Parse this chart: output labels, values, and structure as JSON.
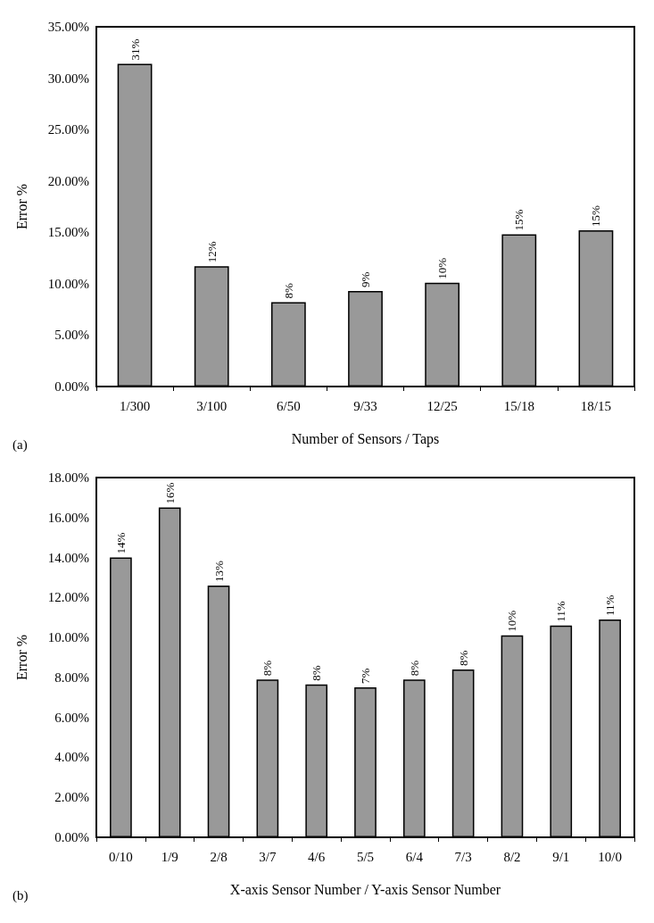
{
  "chart_data": [
    {
      "type": "bar",
      "xlabel": "Number of Sensors / Taps",
      "ylabel": "Error %",
      "annotations": [
        "(a)"
      ],
      "categories": [
        "1/300",
        "3/100",
        "6/50",
        "9/33",
        "12/25",
        "15/18",
        "18/15"
      ],
      "values": [
        31.4,
        11.7,
        8.2,
        9.3,
        10.1,
        14.8,
        15.2
      ],
      "color": "#999999",
      "value_labels": [
        "31%",
        "12%",
        "8%",
        "9%",
        "10%",
        "15%",
        "15%"
      ],
      "ylim": [
        0,
        35
      ],
      "yticks": [
        {
          "value": 0,
          "label": "0.00%"
        },
        {
          "value": 5,
          "label": "5.00%"
        },
        {
          "value": 10,
          "label": "10.00%"
        },
        {
          "value": 15,
          "label": "15.00%"
        },
        {
          "value": 20,
          "label": "20.00%"
        },
        {
          "value": 25,
          "label": "25.00%"
        },
        {
          "value": 30,
          "label": "30.00%"
        },
        {
          "value": 35,
          "label": "35.00%"
        }
      ],
      "grid": false
    },
    {
      "type": "bar",
      "xlabel": "X-axis Sensor Number / Y-axis Sensor Number",
      "ylabel": "Error %",
      "annotations": [
        "(b)"
      ],
      "categories": [
        "0/10",
        "1/9",
        "2/8",
        "3/7",
        "4/6",
        "5/5",
        "6/4",
        "7/3",
        "8/2",
        "9/1",
        "10/0"
      ],
      "values": [
        14.0,
        16.5,
        12.6,
        7.9,
        7.65,
        7.5,
        7.9,
        8.4,
        10.1,
        10.6,
        10.9
      ],
      "color": "#999999",
      "value_labels": [
        "14%",
        "16%",
        "13%",
        "8%",
        "8%",
        "7%",
        "8%",
        "8%",
        "10%",
        "11%",
        "11%"
      ],
      "ylim": [
        0,
        18
      ],
      "yticks": [
        {
          "value": 0,
          "label": "0.00%"
        },
        {
          "value": 2,
          "label": "2.00%"
        },
        {
          "value": 4,
          "label": "4.00%"
        },
        {
          "value": 6,
          "label": "6.00%"
        },
        {
          "value": 8,
          "label": "8.00%"
        },
        {
          "value": 10,
          "label": "10.00%"
        },
        {
          "value": 12,
          "label": "12.00%"
        },
        {
          "value": 14,
          "label": "14.00%"
        },
        {
          "value": 16,
          "label": "16.00%"
        },
        {
          "value": 18,
          "label": "18.00%"
        }
      ],
      "grid": false
    }
  ]
}
